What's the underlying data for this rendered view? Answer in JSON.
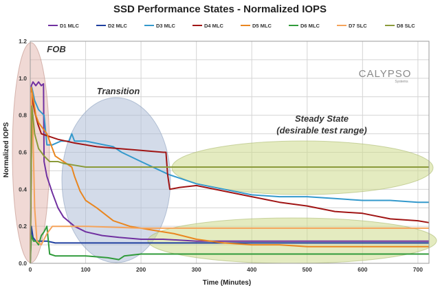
{
  "chart_data": {
    "type": "line",
    "title": "SSD Performance States - Normalized IOPS",
    "xlabel": "Time (Minutes)",
    "ylabel": "Normalized IOPS",
    "xlim": [
      0,
      720
    ],
    "ylim": [
      0,
      1.2
    ],
    "x_ticks": [
      "0",
      "100",
      "200",
      "300",
      "400",
      "500",
      "600",
      "700"
    ],
    "y_ticks": [
      "0.0",
      "0.2",
      "0.4",
      "0.6",
      "0.8",
      "1.0",
      "1.2"
    ],
    "grid": true,
    "legend_position": "top",
    "annotations": {
      "fob": "FOB",
      "transition": "Transition",
      "steady_line1": "Steady State",
      "steady_line2": "(desirable test range)"
    },
    "logo": "CALYPSO",
    "logo_sub": "Systems",
    "series": [
      {
        "name": "D1 MLC",
        "color": "#7030a0",
        "points": [
          [
            0,
            0.0
          ],
          [
            2,
            0.96
          ],
          [
            5,
            0.98
          ],
          [
            10,
            0.96
          ],
          [
            15,
            0.98
          ],
          [
            20,
            0.96
          ],
          [
            24,
            0.97
          ],
          [
            25,
            0.55
          ],
          [
            30,
            0.47
          ],
          [
            40,
            0.38
          ],
          [
            50,
            0.3
          ],
          [
            60,
            0.25
          ],
          [
            80,
            0.2
          ],
          [
            100,
            0.17
          ],
          [
            130,
            0.15
          ],
          [
            160,
            0.14
          ],
          [
            200,
            0.13
          ],
          [
            240,
            0.13
          ],
          [
            300,
            0.12
          ],
          [
            400,
            0.12
          ],
          [
            500,
            0.12
          ],
          [
            600,
            0.12
          ],
          [
            720,
            0.12
          ]
        ]
      },
      {
        "name": "D2 MLC",
        "color": "#1f3f9f",
        "points": [
          [
            0,
            0.0
          ],
          [
            2,
            0.2
          ],
          [
            5,
            0.14
          ],
          [
            10,
            0.12
          ],
          [
            20,
            0.12
          ],
          [
            30,
            0.12
          ],
          [
            45,
            0.11
          ],
          [
            50,
            0.11
          ],
          [
            100,
            0.11
          ],
          [
            200,
            0.11
          ],
          [
            300,
            0.11
          ],
          [
            400,
            0.11
          ],
          [
            500,
            0.11
          ],
          [
            600,
            0.11
          ],
          [
            720,
            0.11
          ]
        ]
      },
      {
        "name": "D3 MLC",
        "color": "#3399cc",
        "points": [
          [
            0,
            0.0
          ],
          [
            3,
            0.95
          ],
          [
            8,
            0.88
          ],
          [
            15,
            0.83
          ],
          [
            25,
            0.8
          ],
          [
            30,
            0.64
          ],
          [
            40,
            0.64
          ],
          [
            55,
            0.66
          ],
          [
            70,
            0.66
          ],
          [
            75,
            0.7
          ],
          [
            80,
            0.66
          ],
          [
            95,
            0.66
          ],
          [
            100,
            0.66
          ],
          [
            150,
            0.63
          ],
          [
            165,
            0.6
          ],
          [
            200,
            0.55
          ],
          [
            250,
            0.48
          ],
          [
            300,
            0.43
          ],
          [
            350,
            0.4
          ],
          [
            400,
            0.37
          ],
          [
            450,
            0.36
          ],
          [
            500,
            0.36
          ],
          [
            550,
            0.35
          ],
          [
            600,
            0.34
          ],
          [
            650,
            0.34
          ],
          [
            700,
            0.33
          ],
          [
            720,
            0.33
          ]
        ]
      },
      {
        "name": "D4 MLC",
        "color": "#a01414",
        "points": [
          [
            0,
            0.0
          ],
          [
            3,
            0.9
          ],
          [
            8,
            0.82
          ],
          [
            14,
            0.75
          ],
          [
            20,
            0.7
          ],
          [
            30,
            0.69
          ],
          [
            50,
            0.67
          ],
          [
            80,
            0.65
          ],
          [
            120,
            0.63
          ],
          [
            160,
            0.62
          ],
          [
            200,
            0.61
          ],
          [
            240,
            0.6
          ],
          [
            245,
            0.6
          ],
          [
            248,
            0.48
          ],
          [
            252,
            0.4
          ],
          [
            270,
            0.41
          ],
          [
            300,
            0.42
          ],
          [
            350,
            0.39
          ],
          [
            400,
            0.36
          ],
          [
            450,
            0.33
          ],
          [
            500,
            0.31
          ],
          [
            550,
            0.28
          ],
          [
            600,
            0.27
          ],
          [
            650,
            0.24
          ],
          [
            700,
            0.23
          ],
          [
            720,
            0.22
          ]
        ]
      },
      {
        "name": "D5 MLC",
        "color": "#e9861f",
        "points": [
          [
            0,
            0.0
          ],
          [
            2,
            0.95
          ],
          [
            6,
            0.88
          ],
          [
            10,
            0.8
          ],
          [
            15,
            0.76
          ],
          [
            20,
            0.74
          ],
          [
            25,
            0.72
          ],
          [
            30,
            0.7
          ],
          [
            45,
            0.58
          ],
          [
            60,
            0.55
          ],
          [
            75,
            0.52
          ],
          [
            80,
            0.47
          ],
          [
            90,
            0.39
          ],
          [
            100,
            0.34
          ],
          [
            120,
            0.3
          ],
          [
            150,
            0.23
          ],
          [
            180,
            0.2
          ],
          [
            220,
            0.18
          ],
          [
            260,
            0.16
          ],
          [
            300,
            0.13
          ],
          [
            350,
            0.11
          ],
          [
            400,
            0.1
          ],
          [
            450,
            0.1
          ],
          [
            500,
            0.09
          ],
          [
            550,
            0.09
          ],
          [
            600,
            0.09
          ],
          [
            720,
            0.09
          ]
        ]
      },
      {
        "name": "D6 MLC",
        "color": "#2f9b3a",
        "points": [
          [
            0,
            0.0
          ],
          [
            2,
            0.15
          ],
          [
            6,
            0.12
          ],
          [
            10,
            0.12
          ],
          [
            15,
            0.1
          ],
          [
            20,
            0.15
          ],
          [
            25,
            0.17
          ],
          [
            30,
            0.2
          ],
          [
            35,
            0.05
          ],
          [
            45,
            0.04
          ],
          [
            60,
            0.04
          ],
          [
            100,
            0.04
          ],
          [
            140,
            0.03
          ],
          [
            160,
            0.02
          ],
          [
            170,
            0.04
          ],
          [
            200,
            0.05
          ],
          [
            250,
            0.05
          ],
          [
            300,
            0.05
          ],
          [
            350,
            0.05
          ],
          [
            400,
            0.05
          ],
          [
            450,
            0.05
          ],
          [
            500,
            0.05
          ],
          [
            550,
            0.05
          ],
          [
            600,
            0.05
          ],
          [
            650,
            0.05
          ],
          [
            720,
            0.05
          ]
        ]
      },
      {
        "name": "D7 SLC",
        "color": "#f5a35a",
        "points": [
          [
            0,
            0.0
          ],
          [
            2,
            0.92
          ],
          [
            5,
            0.7
          ],
          [
            8,
            0.3
          ],
          [
            12,
            0.12
          ],
          [
            20,
            0.1
          ],
          [
            30,
            0.16
          ],
          [
            40,
            0.2
          ],
          [
            60,
            0.2
          ],
          [
            100,
            0.2
          ],
          [
            200,
            0.19
          ],
          [
            300,
            0.19
          ],
          [
            400,
            0.19
          ],
          [
            500,
            0.19
          ],
          [
            600,
            0.19
          ],
          [
            720,
            0.19
          ]
        ]
      },
      {
        "name": "D8 SLC",
        "color": "#8a9a3a",
        "points": [
          [
            0,
            0.0
          ],
          [
            3,
            0.85
          ],
          [
            8,
            0.7
          ],
          [
            15,
            0.62
          ],
          [
            20,
            0.6
          ],
          [
            25,
            0.58
          ],
          [
            35,
            0.55
          ],
          [
            50,
            0.55
          ],
          [
            60,
            0.54
          ],
          [
            80,
            0.53
          ],
          [
            100,
            0.52
          ],
          [
            200,
            0.52
          ],
          [
            300,
            0.52
          ],
          [
            400,
            0.52
          ],
          [
            500,
            0.52
          ],
          [
            600,
            0.52
          ],
          [
            720,
            0.52
          ]
        ]
      }
    ]
  }
}
